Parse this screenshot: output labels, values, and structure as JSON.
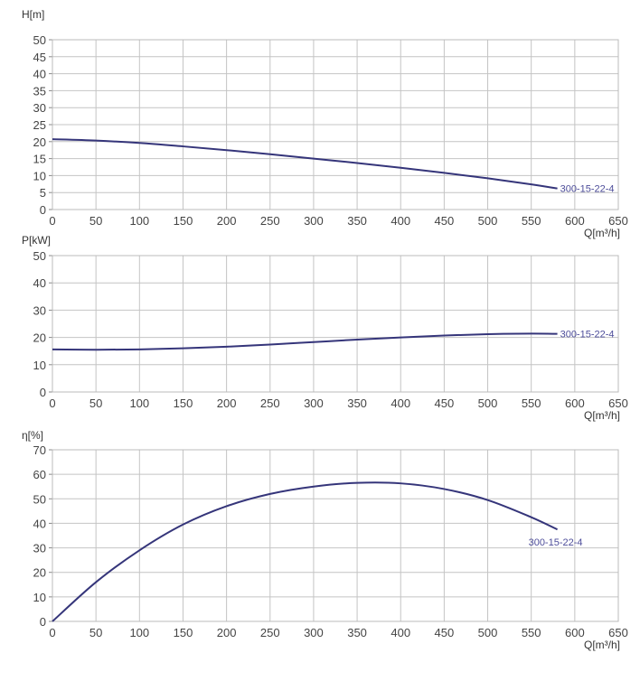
{
  "chart_data": [
    {
      "type": "line",
      "ylabel": "H[m]",
      "xlabel": "Q[m³/h]",
      "xlim": [
        0,
        650
      ],
      "ylim": [
        0,
        50
      ],
      "xticks": [
        0,
        50,
        100,
        150,
        200,
        250,
        300,
        350,
        400,
        450,
        500,
        550,
        600,
        650
      ],
      "yticks": [
        0,
        5,
        10,
        15,
        20,
        25,
        30,
        35,
        40,
        45,
        50
      ],
      "grid": true,
      "series": [
        {
          "name": "300-15-22-4",
          "color": "#35357a",
          "x": [
            0,
            50,
            100,
            150,
            200,
            250,
            300,
            350,
            400,
            450,
            500,
            550,
            580
          ],
          "y": [
            20.7,
            20.3,
            19.6,
            18.6,
            17.5,
            16.3,
            15.0,
            13.7,
            12.3,
            10.8,
            9.2,
            7.4,
            6.2
          ]
        }
      ]
    },
    {
      "type": "line",
      "ylabel": "P[kW]",
      "xlabel": "Q[m³/h]",
      "xlim": [
        0,
        650
      ],
      "ylim": [
        0,
        50
      ],
      "xticks": [
        0,
        50,
        100,
        150,
        200,
        250,
        300,
        350,
        400,
        450,
        500,
        550,
        600,
        650
      ],
      "yticks": [
        0,
        10,
        20,
        30,
        40,
        50
      ],
      "grid": true,
      "series": [
        {
          "name": "300-15-22-4",
          "color": "#35357a",
          "x": [
            0,
            50,
            100,
            150,
            200,
            250,
            300,
            350,
            400,
            450,
            500,
            550,
            580
          ],
          "y": [
            15.6,
            15.5,
            15.6,
            16.0,
            16.6,
            17.4,
            18.3,
            19.2,
            20.0,
            20.7,
            21.2,
            21.4,
            21.3
          ]
        }
      ]
    },
    {
      "type": "line",
      "ylabel": "η[%]",
      "xlabel": "Q[m³/h]",
      "xlim": [
        0,
        650
      ],
      "ylim": [
        0,
        70
      ],
      "xticks": [
        0,
        50,
        100,
        150,
        200,
        250,
        300,
        350,
        400,
        450,
        500,
        550,
        600,
        650
      ],
      "yticks": [
        0,
        10,
        20,
        30,
        40,
        50,
        60,
        70
      ],
      "grid": true,
      "series": [
        {
          "name": "300-15-22-4",
          "color": "#35357a",
          "x": [
            0,
            50,
            100,
            150,
            200,
            250,
            300,
            350,
            400,
            450,
            500,
            550,
            580
          ],
          "y": [
            0,
            16,
            29,
            39.5,
            47,
            52,
            55,
            56.5,
            56.3,
            54,
            49.5,
            42.5,
            37.5
          ]
        }
      ]
    }
  ]
}
